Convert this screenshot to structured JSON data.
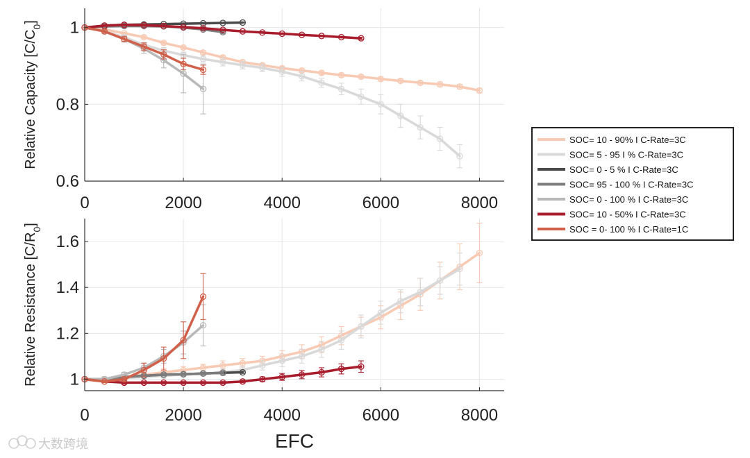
{
  "chart_data": [
    {
      "type": "line",
      "ylabel_main": "Relative Capacity [C/C",
      "ylabel_sub": "0",
      "ylabel_end": "]",
      "xlim": [
        0,
        8500
      ],
      "ylim": [
        0.6,
        1.05
      ],
      "x_ticks": [
        0,
        2000,
        4000,
        6000,
        8000
      ],
      "y_ticks": [
        0.6,
        0.8,
        1
      ],
      "y_tick_labels": [
        "0.6",
        "0.8",
        "1"
      ],
      "grid": true,
      "series": [
        {
          "name": "SOC= 10 - 90% I C-Rate=3C",
          "color": "#F8C9B3",
          "x": [
            0,
            400,
            800,
            1200,
            1600,
            2000,
            2400,
            2800,
            3200,
            3600,
            4000,
            4400,
            4800,
            5200,
            5600,
            6000,
            6400,
            6800,
            7200,
            7600,
            8000
          ],
          "y": [
            1.0,
            0.995,
            0.985,
            0.975,
            0.96,
            0.948,
            0.935,
            0.922,
            0.91,
            0.902,
            0.894,
            0.888,
            0.882,
            0.876,
            0.872,
            0.866,
            0.861,
            0.856,
            0.852,
            0.846,
            0.836
          ],
          "err": [
            0,
            0.003,
            0.003,
            0.004,
            0.004,
            0.004,
            0.005,
            0.005,
            0.005,
            0.005,
            0.005,
            0.005,
            0.005,
            0.005,
            0.005,
            0.005,
            0.005,
            0.005,
            0.006,
            0.006,
            0.006
          ]
        },
        {
          "name": "SOC= 5 - 95 I % C-Rate=3C",
          "color": "#D9D9D9",
          "x": [
            0,
            400,
            800,
            1200,
            1600,
            2000,
            2400,
            2800,
            3200,
            3600,
            4000,
            4400,
            4800,
            5200,
            5600,
            6000,
            6400,
            6800,
            7200,
            7600
          ],
          "y": [
            1.0,
            0.99,
            0.975,
            0.955,
            0.94,
            0.928,
            0.918,
            0.91,
            0.902,
            0.895,
            0.885,
            0.873,
            0.856,
            0.84,
            0.82,
            0.8,
            0.77,
            0.74,
            0.71,
            0.665
          ],
          "err": [
            0,
            0.005,
            0.006,
            0.006,
            0.008,
            0.008,
            0.008,
            0.01,
            0.01,
            0.01,
            0.012,
            0.012,
            0.012,
            0.015,
            0.02,
            0.025,
            0.03,
            0.03,
            0.03,
            0.03
          ]
        },
        {
          "name": "SOC= 0 - 5 % I C-Rate=3C",
          "color": "#4A4A4A",
          "x": [
            0,
            400,
            800,
            1200,
            1600,
            2000,
            2400,
            2800,
            3200
          ],
          "y": [
            1.0,
            1.005,
            1.007,
            1.008,
            1.009,
            1.01,
            1.011,
            1.012,
            1.013
          ],
          "err": [
            0,
            0.001,
            0.001,
            0.001,
            0.001,
            0.001,
            0.001,
            0.001,
            0.001
          ]
        },
        {
          "name": "SOC= 95 - 100 % I C-Rate=3C",
          "color": "#7C7C7C",
          "x": [
            0,
            400,
            800,
            1200,
            1600,
            2000,
            2400,
            2800
          ],
          "y": [
            1.0,
            1.003,
            1.004,
            1.004,
            1.003,
            1.0,
            0.995,
            0.988
          ],
          "err": [
            0,
            0.002,
            0.002,
            0.002,
            0.002,
            0.003,
            0.003,
            0.004
          ]
        },
        {
          "name": "SOC= 0 - 100 % I C-Rate=3C",
          "color": "#B8B8B8",
          "x": [
            0,
            400,
            800,
            1200,
            1600,
            2000,
            2400
          ],
          "y": [
            1.0,
            0.99,
            0.97,
            0.945,
            0.915,
            0.88,
            0.84
          ],
          "err": [
            0,
            0.005,
            0.008,
            0.012,
            0.02,
            0.05,
            0.065
          ]
        },
        {
          "name": "SOC= 10 - 50% I C-Rate=3C",
          "color": "#A81C2C",
          "x": [
            0,
            400,
            800,
            1200,
            1600,
            2000,
            2400,
            2800,
            3200,
            3600,
            4000,
            4400,
            4800,
            5200,
            5600
          ],
          "y": [
            1.0,
            1.005,
            1.007,
            1.006,
            1.004,
            1.001,
            0.998,
            0.994,
            0.99,
            0.987,
            0.984,
            0.981,
            0.978,
            0.975,
            0.972
          ],
          "err": [
            0,
            0.002,
            0.002,
            0.002,
            0.002,
            0.002,
            0.002,
            0.002,
            0.002,
            0.002,
            0.002,
            0.002,
            0.002,
            0.002,
            0.003
          ]
        },
        {
          "name": "SOC = 0- 100 % I C-Rate=1C",
          "color": "#D0604A",
          "x": [
            0,
            400,
            800,
            1200,
            1600,
            2000,
            2400
          ],
          "y": [
            1.0,
            0.99,
            0.97,
            0.95,
            0.93,
            0.905,
            0.89
          ],
          "err": [
            0,
            0.004,
            0.006,
            0.01,
            0.012,
            0.015,
            0.012
          ]
        }
      ]
    },
    {
      "type": "line",
      "ylabel_main": "Relative Resistance [C/R",
      "ylabel_sub": "0",
      "ylabel_end": "]",
      "xlabel": "EFC",
      "xlim": [
        0,
        8500
      ],
      "ylim": [
        0.95,
        1.7
      ],
      "x_ticks": [
        0,
        2000,
        4000,
        6000,
        8000
      ],
      "y_ticks": [
        1.0,
        1.2,
        1.4,
        1.6
      ],
      "y_tick_labels": [
        "1",
        "1.2",
        "1.4",
        "1.6"
      ],
      "grid": true,
      "series": [
        {
          "name": "SOC= 10 - 90% I C-Rate=3C",
          "color": "#F8C9B3",
          "x": [
            0,
            400,
            800,
            1200,
            1600,
            2000,
            2400,
            2800,
            3200,
            3600,
            4000,
            4400,
            4800,
            5200,
            5600,
            6000,
            6400,
            6800,
            7200,
            7600,
            8000
          ],
          "y": [
            1.0,
            1.0,
            1.01,
            1.02,
            1.03,
            1.04,
            1.05,
            1.06,
            1.07,
            1.08,
            1.1,
            1.12,
            1.15,
            1.19,
            1.23,
            1.27,
            1.32,
            1.37,
            1.43,
            1.49,
            1.55
          ],
          "err": [
            0,
            0.01,
            0.01,
            0.01,
            0.015,
            0.015,
            0.015,
            0.02,
            0.02,
            0.02,
            0.025,
            0.03,
            0.035,
            0.04,
            0.04,
            0.05,
            0.06,
            0.07,
            0.08,
            0.1,
            0.13
          ]
        },
        {
          "name": "SOC= 5 - 95 I % C-Rate=3C",
          "color": "#D9D9D9",
          "x": [
            0,
            400,
            800,
            1200,
            1600,
            2000,
            2400,
            2800,
            3200,
            3600,
            4000,
            4400,
            4800,
            5200,
            5600,
            6000,
            6400,
            6800,
            7200,
            7600
          ],
          "y": [
            1.0,
            1.0,
            1.005,
            1.01,
            1.015,
            1.02,
            1.025,
            1.03,
            1.04,
            1.06,
            1.08,
            1.1,
            1.13,
            1.17,
            1.23,
            1.29,
            1.34,
            1.38,
            1.43,
            1.48
          ],
          "err": [
            0,
            0.005,
            0.005,
            0.005,
            0.01,
            0.01,
            0.01,
            0.015,
            0.015,
            0.02,
            0.025,
            0.03,
            0.035,
            0.04,
            0.05,
            0.05,
            0.05,
            0.06,
            0.06,
            0.07
          ]
        },
        {
          "name": "SOC= 0 - 5 % I C-Rate=3C",
          "color": "#4A4A4A",
          "x": [
            0,
            400,
            800,
            1200,
            1600,
            2000,
            2400,
            2800,
            3200
          ],
          "y": [
            1.0,
            1.0,
            1.01,
            1.015,
            1.02,
            1.022,
            1.025,
            1.028,
            1.03
          ],
          "err": [
            0,
            0.003,
            0.004,
            0.005,
            0.005,
            0.005,
            0.005,
            0.005,
            0.005
          ]
        },
        {
          "name": "SOC= 95 - 100 % I C-Rate=3C",
          "color": "#7C7C7C",
          "x": [
            0,
            400,
            800,
            1200,
            1600,
            2000,
            2400,
            2800
          ],
          "y": [
            1.0,
            1.0,
            1.01,
            1.015,
            1.02,
            1.022,
            1.025,
            1.028
          ],
          "err": [
            0,
            0.003,
            0.004,
            0.005,
            0.005,
            0.006,
            0.006,
            0.006
          ]
        },
        {
          "name": "SOC= 0 - 100 % I C-Rate=3C",
          "color": "#B8B8B8",
          "x": [
            0,
            400,
            800,
            1200,
            1600,
            2000,
            2400
          ],
          "y": [
            1.0,
            1.0,
            1.02,
            1.05,
            1.1,
            1.16,
            1.235
          ],
          "err": [
            0,
            0.005,
            0.01,
            0.02,
            0.03,
            0.05,
            0.09
          ]
        },
        {
          "name": "SOC= 10 - 50% I C-Rate=3C",
          "color": "#A81C2C",
          "x": [
            0,
            400,
            800,
            1200,
            1600,
            2000,
            2400,
            2800,
            3200,
            3600,
            4000,
            4400,
            4800,
            5200,
            5600
          ],
          "y": [
            1.0,
            0.99,
            0.985,
            0.985,
            0.985,
            0.985,
            0.985,
            0.985,
            0.99,
            1.0,
            1.01,
            1.02,
            1.03,
            1.045,
            1.055
          ],
          "err": [
            0,
            0.004,
            0.006,
            0.005,
            0.005,
            0.005,
            0.005,
            0.005,
            0.006,
            0.01,
            0.015,
            0.018,
            0.02,
            0.022,
            0.025
          ]
        },
        {
          "name": "SOC = 0- 100 % I C-Rate=1C",
          "color": "#D0604A",
          "x": [
            0,
            400,
            800,
            1200,
            1600,
            2000,
            2400
          ],
          "y": [
            1.0,
            0.99,
            1.0,
            1.04,
            1.09,
            1.17,
            1.36
          ],
          "err": [
            0,
            0.005,
            0.01,
            0.03,
            0.05,
            0.08,
            0.1
          ]
        }
      ]
    }
  ],
  "legend": {
    "placement": "right",
    "entries": [
      {
        "label": "SOC= 10 - 90% I C-Rate=3C",
        "color": "#F8C9B3"
      },
      {
        "label": "SOC= 5 - 95 I % C-Rate=3C",
        "color": "#D9D9D9"
      },
      {
        "label": "SOC= 0 - 5 % I C-Rate=3C",
        "color": "#4A4A4A"
      },
      {
        "label": "SOC= 95 - 100 % I C-Rate=3C",
        "color": "#7C7C7C"
      },
      {
        "label": "SOC= 0 - 100 % I C-Rate=3C",
        "color": "#B8B8B8"
      },
      {
        "label": "SOC= 10 - 50% I C-Rate=3C",
        "color": "#A81C2C"
      },
      {
        "label": "SOC = 0- 100 % I C-Rate=1C",
        "color": "#D0604A"
      }
    ]
  },
  "watermark": {
    "text": "大数跨境"
  }
}
